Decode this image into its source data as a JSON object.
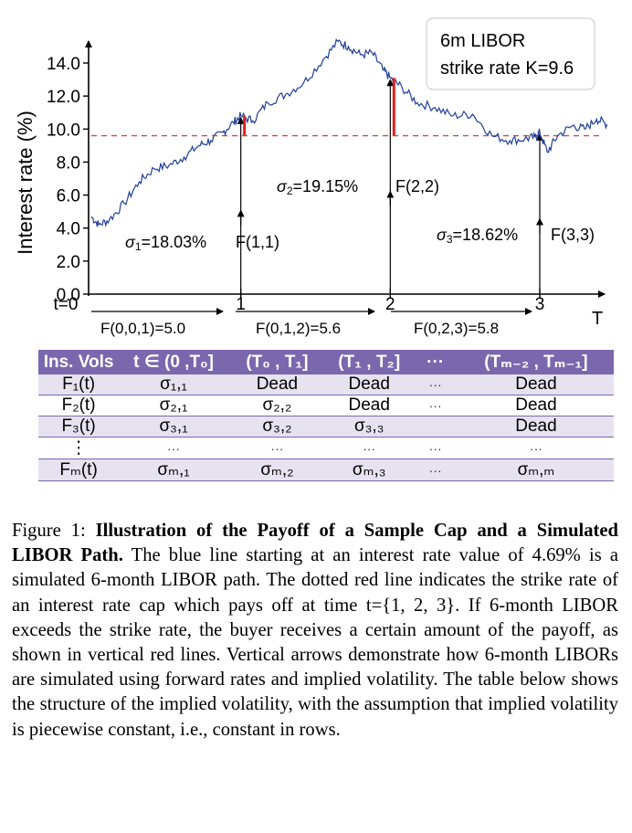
{
  "chart_data": {
    "type": "line",
    "ylabel": "Interest rate (%)",
    "xlabel": "T",
    "y_ticks": [
      "0.0",
      "2.0",
      "4.0",
      "6.0",
      "8.0",
      "10.0",
      "12.0",
      "14.0"
    ],
    "y_tick_values": [
      0,
      2,
      4,
      6,
      8,
      10,
      12,
      14
    ],
    "ylim": [
      0,
      15.6
    ],
    "xlim": [
      0,
      3.4
    ],
    "x_ticks": [
      {
        "label": "t=0",
        "value": 0
      },
      {
        "label": "1",
        "value": 1
      },
      {
        "label": "2",
        "value": 2
      },
      {
        "label": "3",
        "value": 3
      }
    ],
    "strike": 9.6,
    "legend_lines": [
      "6m LIBOR",
      "strike rate K=9.6"
    ],
    "path_start_value": 4.69,
    "path_anchor_points": [
      {
        "t": 0.0,
        "v": 4.69
      },
      {
        "t": 0.05,
        "v": 4.2
      },
      {
        "t": 0.12,
        "v": 4.5
      },
      {
        "t": 0.22,
        "v": 5.5
      },
      {
        "t": 0.32,
        "v": 6.8
      },
      {
        "t": 0.42,
        "v": 7.6
      },
      {
        "t": 0.52,
        "v": 7.8
      },
      {
        "t": 0.62,
        "v": 8.3
      },
      {
        "t": 0.72,
        "v": 9.0
      },
      {
        "t": 0.8,
        "v": 9.3
      },
      {
        "t": 0.88,
        "v": 9.8
      },
      {
        "t": 0.95,
        "v": 10.4
      },
      {
        "t": 1.0,
        "v": 10.8
      },
      {
        "t": 1.08,
        "v": 10.5
      },
      {
        "t": 1.18,
        "v": 11.6
      },
      {
        "t": 1.3,
        "v": 12.1
      },
      {
        "t": 1.42,
        "v": 12.8
      },
      {
        "t": 1.55,
        "v": 14.2
      },
      {
        "t": 1.65,
        "v": 15.3
      },
      {
        "t": 1.72,
        "v": 15.0
      },
      {
        "t": 1.8,
        "v": 14.5
      },
      {
        "t": 1.88,
        "v": 14.6
      },
      {
        "t": 1.95,
        "v": 13.6
      },
      {
        "t": 2.0,
        "v": 13.1
      },
      {
        "t": 2.08,
        "v": 12.5
      },
      {
        "t": 2.18,
        "v": 11.6
      },
      {
        "t": 2.3,
        "v": 11.3
      },
      {
        "t": 2.42,
        "v": 10.8
      },
      {
        "t": 2.55,
        "v": 10.9
      },
      {
        "t": 2.68,
        "v": 9.6
      },
      {
        "t": 2.8,
        "v": 9.3
      },
      {
        "t": 2.9,
        "v": 9.4
      },
      {
        "t": 2.97,
        "v": 9.5
      },
      {
        "t": 3.0,
        "v": 9.8
      },
      {
        "t": 3.05,
        "v": 8.6
      },
      {
        "t": 3.12,
        "v": 9.6
      },
      {
        "t": 3.22,
        "v": 10.2
      },
      {
        "t": 3.3,
        "v": 10.0
      },
      {
        "t": 3.38,
        "v": 10.6
      },
      {
        "t": 3.45,
        "v": 10.3
      }
    ],
    "payoff_segments": [
      {
        "t": 1,
        "value": 10.8
      },
      {
        "t": 2,
        "value": 13.1
      }
    ],
    "vertical_arrows": [
      {
        "t": 1,
        "top": 10.8
      },
      {
        "t": 2,
        "top": 13.1
      },
      {
        "t": 3,
        "top": 9.8
      }
    ],
    "vol_annotations": [
      {
        "sigma_sub": "1",
        "value": "=18.03%",
        "forward": "F(1,1)",
        "t": 1
      },
      {
        "sigma_sub": "2",
        "value": "=19.15%",
        "forward": "F(2,2)",
        "t": 2
      },
      {
        "sigma_sub": "3",
        "value": "=18.62%",
        "forward": "F(3,3)",
        "t": 3
      }
    ],
    "forward_labels": [
      "F(0,0,1)=5.0",
      "F(0,1,2)=5.6",
      "F(0,2,3)=5.8"
    ],
    "colors": {
      "path": "#1f3f9a",
      "strike": "#c84c4c",
      "payoff": "#e02020",
      "axis": "#000000"
    }
  },
  "table": {
    "headers": [
      "Ins. Vols",
      "t ∈ (0 ,T₀]",
      "(T₀ , T₁]",
      "(T₁ , T₂]",
      "···",
      "(Tₘ₋₂ ,  Tₘ₋₁]"
    ],
    "rows": [
      [
        "F₁(t)",
        "σ₁,₁",
        "Dead",
        "Dead",
        "···",
        "Dead"
      ],
      [
        "F₂(t)",
        "σ₂,₁",
        "σ₂,₂",
        "Dead",
        "···",
        "Dead"
      ],
      [
        "F₃(t)",
        "σ₃,₁",
        "σ₃,₂",
        "σ₃,₃",
        "",
        "Dead"
      ],
      [
        "⋮",
        "···",
        "···",
        "···",
        "···",
        "···"
      ],
      [
        "Fₘ(t)",
        "σₘ,₁",
        "σₘ,₂",
        "σₘ,₃",
        "···",
        "σₘ,ₘ"
      ]
    ]
  },
  "caption": {
    "prefix": "Figure 1: ",
    "bold": "Illustration of the Payoff of a Sample Cap and a Simulated LIBOR Path.",
    "body": " The blue line starting at an interest rate value of 4.69% is a simulated 6-month LIBOR path. The dotted red line indicates the strike rate of an interest rate cap which pays off at time t={1, 2, 3}. If 6-month LIBOR exceeds the strike rate, the buyer receives a certain amount of the payoff, as shown in vertical red lines. Vertical arrows demonstrate how 6-month LIBORs are simulated using forward rates and implied volatility. The table below shows the structure of the implied volatility, with the assumption that implied volatility is piecewise constant, i.e., constant in rows."
  }
}
